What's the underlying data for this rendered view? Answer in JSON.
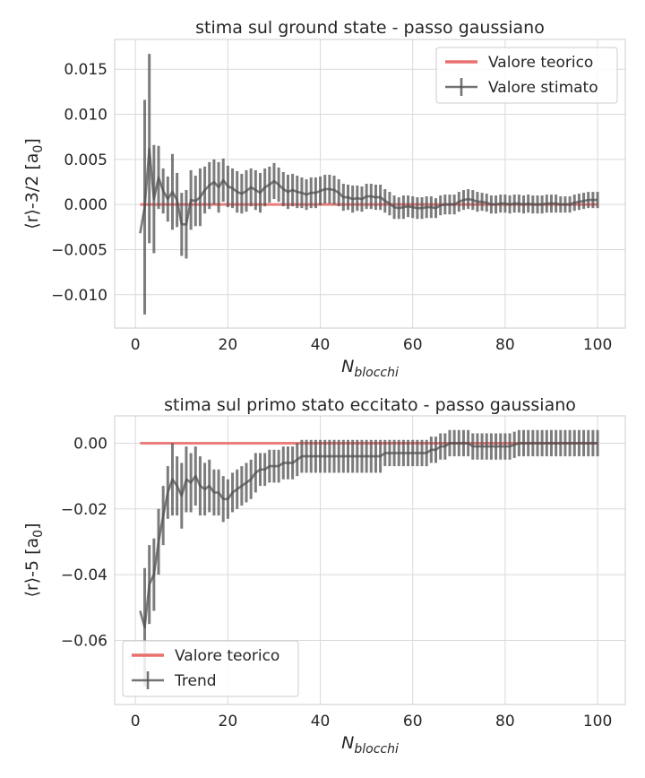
{
  "chart_data": [
    {
      "type": "line",
      "title": "stima sul ground state - passo gaussiano",
      "xlabel": "N",
      "xlabel_sub": "blocchi",
      "ylabel": "⟨r⟩-3/2 [a",
      "ylabel_sub": "0",
      "ylabel_end": "]",
      "xlim": [
        -4.5,
        106
      ],
      "ylim": [
        -0.0137,
        0.0183
      ],
      "xticks": [
        0,
        20,
        40,
        60,
        80,
        100
      ],
      "xtick_labels": [
        "0",
        "20",
        "40",
        "60",
        "80",
        "100"
      ],
      "yticks": [
        -0.01,
        -0.005,
        0.0,
        0.005,
        0.01,
        0.015
      ],
      "ytick_labels": [
        "−0.010",
        "−0.005",
        "0.000",
        "0.005",
        "0.010",
        "0.015"
      ],
      "grid": true,
      "legend_position": "top-right",
      "theory": {
        "name": "Valore teorico",
        "value": 0.0,
        "color": "#e8716f"
      },
      "estimate_name": "Valore stimato",
      "estimate_color": "#505050",
      "x": [
        1,
        2,
        3,
        4,
        5,
        6,
        7,
        8,
        9,
        10,
        11,
        12,
        13,
        14,
        15,
        16,
        17,
        18,
        19,
        20,
        21,
        22,
        23,
        24,
        25,
        26,
        27,
        28,
        29,
        30,
        31,
        32,
        33,
        34,
        35,
        36,
        37,
        38,
        39,
        40,
        41,
        42,
        43,
        44,
        45,
        46,
        47,
        48,
        49,
        50,
        51,
        52,
        53,
        54,
        55,
        56,
        57,
        58,
        59,
        60,
        61,
        62,
        63,
        64,
        65,
        66,
        67,
        68,
        69,
        70,
        71,
        72,
        73,
        74,
        75,
        76,
        77,
        78,
        79,
        80,
        81,
        82,
        83,
        84,
        85,
        86,
        87,
        88,
        89,
        90,
        91,
        92,
        93,
        94,
        95,
        96,
        97,
        98,
        99,
        100
      ],
      "y": [
        -0.0032,
        -0.0003,
        0.0062,
        0.0006,
        0.003,
        0.0015,
        0.0006,
        0.0014,
        0.0005,
        -0.0022,
        -0.0022,
        0.0005,
        0.0004,
        0.0008,
        0.0016,
        0.0021,
        0.0025,
        0.0019,
        0.0027,
        0.002,
        0.0018,
        0.0014,
        0.0012,
        0.0015,
        0.0019,
        0.0016,
        0.0013,
        0.0019,
        0.0022,
        0.0026,
        0.0022,
        0.0017,
        0.0014,
        0.0016,
        0.0014,
        0.0013,
        0.0011,
        0.0013,
        0.0013,
        0.0015,
        0.0017,
        0.0017,
        0.0016,
        0.0013,
        0.0008,
        0.0008,
        0.0006,
        0.0007,
        0.0006,
        0.0009,
        0.0009,
        0.0008,
        0.0008,
        0.0004,
        0.0001,
        -0.0003,
        -0.0004,
        -0.0003,
        -0.0002,
        -0.0003,
        -0.0004,
        -0.0004,
        -0.0003,
        -0.0003,
        -0.0004,
        -0.0001,
        0.0,
        0.0,
        0.0,
        0.0003,
        0.0005,
        0.0006,
        0.0005,
        0.0003,
        0.0003,
        0.0002,
        0.0,
        0.0,
        0.0001,
        0.0001,
        0.0,
        0.0001,
        0.0001,
        0.0,
        0.0001,
        0.0,
        0.0,
        0.0,
        0.0001,
        0.0001,
        0.0001,
        0.0,
        0.0,
        0.0,
        0.0002,
        0.0003,
        0.0004,
        0.0005,
        0.0005,
        0.0005
      ],
      "err": [
        0.0,
        0.0119,
        0.0105,
        0.006,
        0.0035,
        0.0025,
        0.0025,
        0.0042,
        0.003,
        0.0035,
        0.0038,
        0.0033,
        0.0028,
        0.0032,
        0.0026,
        0.0026,
        0.0025,
        0.0028,
        0.0024,
        0.0023,
        0.0022,
        0.0023,
        0.0022,
        0.0023,
        0.0021,
        0.0022,
        0.0022,
        0.0021,
        0.002,
        0.002,
        0.0019,
        0.0019,
        0.0019,
        0.0018,
        0.0018,
        0.0017,
        0.0017,
        0.0017,
        0.0017,
        0.0016,
        0.0016,
        0.0016,
        0.0016,
        0.0015,
        0.0015,
        0.0014,
        0.0015,
        0.0014,
        0.0014,
        0.0014,
        0.0014,
        0.0014,
        0.0014,
        0.0013,
        0.0013,
        0.0013,
        0.0012,
        0.0013,
        0.0012,
        0.0012,
        0.0012,
        0.0012,
        0.0012,
        0.0012,
        0.0011,
        0.0011,
        0.0011,
        0.0011,
        0.0011,
        0.0011,
        0.0011,
        0.0011,
        0.0011,
        0.0011,
        0.001,
        0.001,
        0.001,
        0.001,
        0.001,
        0.001,
        0.001,
        0.001,
        0.001,
        0.001,
        0.001,
        0.001,
        0.001,
        0.001,
        0.001,
        0.001,
        0.001,
        0.0009,
        0.0009,
        0.0009,
        0.0009,
        0.0009,
        0.0009,
        0.0009,
        0.0009,
        0.0009
      ]
    },
    {
      "type": "line",
      "title": "stima sul primo stato eccitato - passo gaussiano",
      "xlabel": "N",
      "xlabel_sub": "blocchi",
      "ylabel": "⟨r⟩-5 [a",
      "ylabel_sub": "0",
      "ylabel_end": "]",
      "xlim": [
        -4.5,
        106
      ],
      "ylim": [
        -0.0795,
        0.0083
      ],
      "xticks": [
        0,
        20,
        40,
        60,
        80,
        100
      ],
      "xtick_labels": [
        "0",
        "20",
        "40",
        "60",
        "80",
        "100"
      ],
      "yticks": [
        -0.06,
        -0.04,
        -0.02,
        0.0
      ],
      "ytick_labels": [
        "−0.06",
        "−0.04",
        "−0.02",
        "0.00"
      ],
      "grid": true,
      "legend_position": "bottom-left",
      "theory": {
        "name": "Valore teorico",
        "value": 0.0,
        "color": "#e8716f"
      },
      "estimate_name": "Trend",
      "estimate_color": "#505050",
      "x": [
        1,
        2,
        3,
        4,
        5,
        6,
        7,
        8,
        9,
        10,
        11,
        12,
        13,
        14,
        15,
        16,
        17,
        18,
        19,
        20,
        21,
        22,
        23,
        24,
        25,
        26,
        27,
        28,
        29,
        30,
        31,
        32,
        33,
        34,
        35,
        36,
        37,
        38,
        39,
        40,
        41,
        42,
        43,
        44,
        45,
        46,
        47,
        48,
        49,
        50,
        51,
        52,
        53,
        54,
        55,
        56,
        57,
        58,
        59,
        60,
        61,
        62,
        63,
        64,
        65,
        66,
        67,
        68,
        69,
        70,
        71,
        72,
        73,
        74,
        75,
        76,
        77,
        78,
        79,
        80,
        81,
        82,
        83,
        84,
        85,
        86,
        87,
        88,
        89,
        90,
        91,
        92,
        93,
        94,
        95,
        96,
        97,
        98,
        99,
        100
      ],
      "y": [
        -0.051,
        -0.056,
        -0.043,
        -0.04,
        -0.03,
        -0.022,
        -0.015,
        -0.011,
        -0.013,
        -0.016,
        -0.011,
        -0.012,
        -0.01,
        -0.013,
        -0.014,
        -0.013,
        -0.015,
        -0.015,
        -0.017,
        -0.017,
        -0.015,
        -0.014,
        -0.013,
        -0.012,
        -0.011,
        -0.009,
        -0.008,
        -0.008,
        -0.007,
        -0.007,
        -0.007,
        -0.006,
        -0.006,
        -0.006,
        -0.005,
        -0.004,
        -0.004,
        -0.004,
        -0.004,
        -0.004,
        -0.004,
        -0.004,
        -0.004,
        -0.004,
        -0.004,
        -0.004,
        -0.004,
        -0.004,
        -0.004,
        -0.004,
        -0.004,
        -0.004,
        -0.004,
        -0.003,
        -0.003,
        -0.003,
        -0.003,
        -0.003,
        -0.003,
        -0.003,
        -0.003,
        -0.003,
        -0.003,
        -0.002,
        -0.002,
        -0.001,
        -0.001,
        0.0,
        0.0,
        0.0,
        0.0,
        0.0,
        -0.001,
        -0.001,
        -0.001,
        -0.001,
        -0.001,
        -0.001,
        -0.001,
        -0.001,
        -0.001,
        -0.0005,
        0.0,
        0.0,
        0.0,
        0.0,
        0.0,
        0.0,
        0.0,
        0.0,
        0.0,
        0.0,
        0.0,
        0.0,
        0.0,
        0.0,
        0.0,
        0.0,
        0.0,
        0.0
      ],
      "err": [
        0.0,
        0.018,
        0.012,
        0.011,
        0.01,
        0.009,
        0.008,
        0.011,
        0.009,
        0.01,
        0.01,
        0.009,
        0.009,
        0.009,
        0.008,
        0.008,
        0.007,
        0.007,
        0.007,
        0.006,
        0.006,
        0.006,
        0.006,
        0.006,
        0.006,
        0.006,
        0.005,
        0.005,
        0.005,
        0.005,
        0.005,
        0.005,
        0.005,
        0.005,
        0.005,
        0.005,
        0.005,
        0.005,
        0.005,
        0.005,
        0.005,
        0.005,
        0.005,
        0.005,
        0.005,
        0.005,
        0.005,
        0.005,
        0.005,
        0.005,
        0.005,
        0.005,
        0.005,
        0.004,
        0.004,
        0.004,
        0.004,
        0.004,
        0.004,
        0.004,
        0.004,
        0.004,
        0.004,
        0.004,
        0.004,
        0.004,
        0.004,
        0.004,
        0.004,
        0.004,
        0.004,
        0.004,
        0.004,
        0.004,
        0.004,
        0.004,
        0.004,
        0.004,
        0.004,
        0.004,
        0.004,
        0.004,
        0.004,
        0.004,
        0.004,
        0.004,
        0.004,
        0.004,
        0.004,
        0.004,
        0.004,
        0.004,
        0.004,
        0.004,
        0.004,
        0.004,
        0.004,
        0.004,
        0.004,
        0.004
      ]
    }
  ]
}
